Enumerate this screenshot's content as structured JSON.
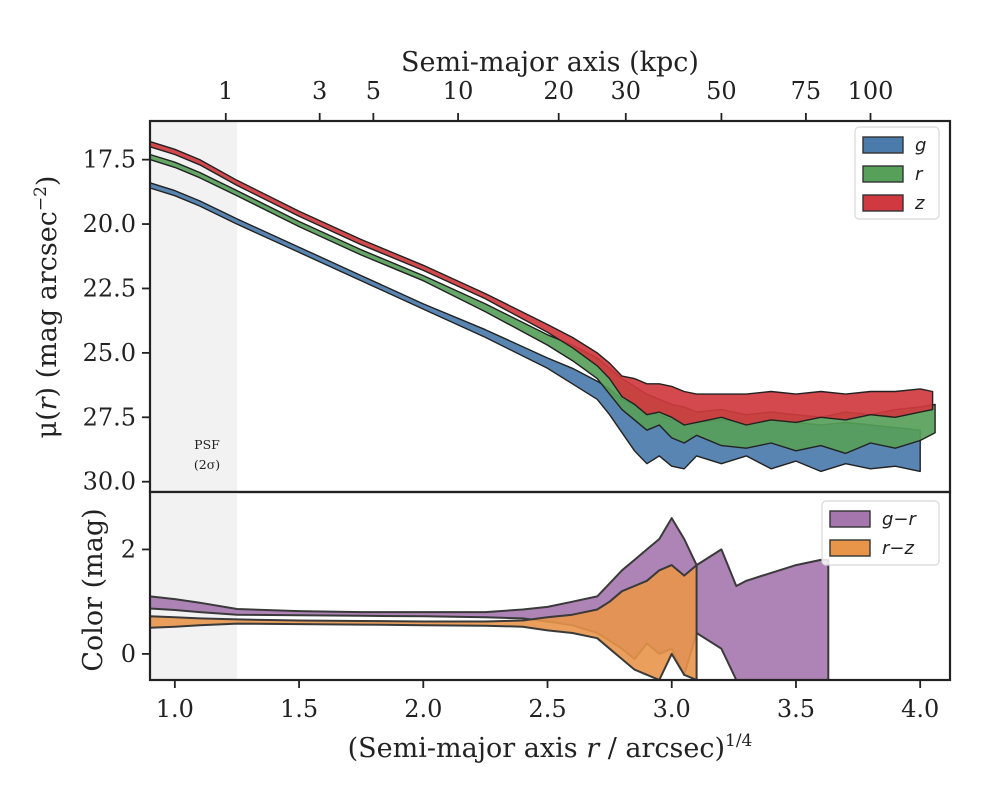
{
  "chart_data": [
    {
      "panel": "profile",
      "type": "area",
      "xlabel": "(Semi-major axis r / arcsec)^{1/4}",
      "xlabel_parts": {
        "main": "(Semi-major axis ",
        "var": "r",
        "rest": " / arcsec)",
        "sup": "1/4"
      },
      "top_xlabel": "Semi-major axis (kpc)",
      "top_ticks": [
        {
          "label": "1",
          "x": 1.205
        },
        {
          "label": "3",
          "x": 1.583
        },
        {
          "label": "5",
          "x": 1.799
        },
        {
          "label": "10",
          "x": 2.14
        },
        {
          "label": "20",
          "x": 2.545
        },
        {
          "label": "30",
          "x": 2.815
        },
        {
          "label": "50",
          "x": 3.2
        },
        {
          "label": "75",
          "x": 3.54
        },
        {
          "label": "100",
          "x": 3.8
        }
      ],
      "ylabel": "μ(r) (mag arcsec^−2)",
      "ylabel_parts": {
        "mu": "μ(",
        "var": "r",
        "rest": ") (mag arcsec",
        "sup": "−2",
        "close": ")"
      },
      "xlim": [
        0.9,
        4.12
      ],
      "ylim": [
        30.4,
        16.0
      ],
      "x_ticks": [
        "1.0",
        "1.5",
        "2.0",
        "2.5",
        "3.0",
        "3.5",
        "4.0"
      ],
      "y_ticks": [
        "17.5",
        "20.0",
        "22.5",
        "25.0",
        "27.5",
        "30.0"
      ],
      "psf_region": {
        "x_max": 1.25,
        "label_line1": "PSF",
        "label_line2": "(2σ)"
      },
      "legend": {
        "placement": "top-right",
        "entries": [
          "g",
          "r",
          "z"
        ]
      },
      "colors": {
        "g": "#4b7bab",
        "r": "#57a05a",
        "z": "#d0393f"
      },
      "series": [
        {
          "name": "g",
          "x": [
            0.9,
            1.0,
            1.1,
            1.25,
            1.5,
            1.75,
            2.0,
            2.25,
            2.5,
            2.6,
            2.7,
            2.75,
            2.8,
            2.85,
            2.9,
            2.95,
            3.0,
            3.05,
            3.1,
            3.2,
            3.3,
            3.4,
            3.5,
            3.6,
            3.7,
            3.8,
            3.9,
            4.0
          ],
          "y1": [
            18.4,
            18.7,
            19.1,
            19.8,
            20.9,
            22.0,
            23.1,
            24.1,
            25.2,
            25.6,
            26.1,
            26.4,
            26.8,
            27.0,
            27.3,
            27.4,
            27.6,
            27.6,
            27.7,
            27.6,
            27.7,
            27.6,
            27.7,
            27.8,
            27.7,
            27.8,
            27.9,
            28.0
          ],
          "y2": [
            18.6,
            18.9,
            19.3,
            20.0,
            21.1,
            22.2,
            23.3,
            24.4,
            25.6,
            26.2,
            26.8,
            27.4,
            28.1,
            28.8,
            29.3,
            29.0,
            29.4,
            29.5,
            29.0,
            29.3,
            29.0,
            29.5,
            29.2,
            29.6,
            29.3,
            29.5,
            29.4,
            29.6
          ]
        },
        {
          "name": "r",
          "x": [
            0.9,
            1.0,
            1.1,
            1.25,
            1.5,
            1.75,
            2.0,
            2.25,
            2.5,
            2.6,
            2.7,
            2.75,
            2.8,
            2.85,
            2.9,
            2.95,
            3.0,
            3.05,
            3.1,
            3.2,
            3.3,
            3.4,
            3.5,
            3.6,
            3.7,
            3.8,
            3.9,
            4.0,
            4.06
          ],
          "y1": [
            17.3,
            17.6,
            18.0,
            18.7,
            19.9,
            21.0,
            22.0,
            23.1,
            24.3,
            24.7,
            25.2,
            25.6,
            26.0,
            26.3,
            26.6,
            26.8,
            27.0,
            27.1,
            27.3,
            27.2,
            27.4,
            27.3,
            27.4,
            27.5,
            27.3,
            27.4,
            27.2,
            27.1,
            27.0
          ],
          "y2": [
            17.5,
            17.8,
            18.2,
            18.9,
            20.1,
            21.2,
            22.2,
            23.4,
            24.7,
            25.3,
            26.0,
            26.6,
            27.2,
            27.6,
            28.0,
            27.8,
            28.3,
            28.5,
            28.2,
            28.6,
            28.7,
            28.5,
            28.8,
            28.6,
            28.9,
            28.5,
            28.7,
            28.4,
            28.1
          ]
        },
        {
          "name": "z",
          "x": [
            0.9,
            1.0,
            1.1,
            1.25,
            1.5,
            1.75,
            2.0,
            2.25,
            2.5,
            2.6,
            2.7,
            2.75,
            2.8,
            2.85,
            2.9,
            2.95,
            3.0,
            3.05,
            3.1,
            3.2,
            3.3,
            3.4,
            3.5,
            3.6,
            3.7,
            3.8,
            3.9,
            4.0,
            4.05
          ],
          "y1": [
            16.8,
            17.1,
            17.5,
            18.3,
            19.5,
            20.6,
            21.6,
            22.7,
            23.9,
            24.4,
            25.0,
            25.4,
            25.9,
            26.0,
            26.2,
            26.2,
            26.3,
            26.5,
            26.6,
            26.6,
            26.6,
            26.5,
            26.6,
            26.5,
            26.6,
            26.5,
            26.5,
            26.4,
            26.5
          ],
          "y2": [
            17.0,
            17.3,
            17.7,
            18.5,
            19.7,
            20.8,
            21.8,
            22.9,
            24.2,
            24.8,
            25.5,
            26.0,
            26.7,
            27.0,
            27.4,
            27.3,
            27.5,
            27.8,
            27.7,
            27.5,
            27.8,
            27.6,
            27.7,
            27.5,
            27.6,
            27.4,
            27.5,
            27.3,
            27.2
          ]
        }
      ]
    },
    {
      "panel": "color",
      "type": "area",
      "ylabel": "Color (mag)",
      "xlim": [
        0.9,
        4.12
      ],
      "ylim": [
        -0.5,
        3.1
      ],
      "y_ticks": [
        "0",
        "2"
      ],
      "y_tick_values": [
        0,
        2
      ],
      "legend": {
        "placement": "top-right",
        "entries": [
          "g−r",
          "r−z"
        ]
      },
      "colors": {
        "g-r": "#a575ad",
        "r-z": "#e8954a"
      },
      "series": [
        {
          "name": "g−r",
          "x": [
            0.9,
            1.0,
            1.1,
            1.25,
            1.5,
            1.75,
            2.0,
            2.25,
            2.4,
            2.5,
            2.6,
            2.7,
            2.75,
            2.8,
            2.85,
            2.9,
            2.95,
            3.0,
            3.05,
            3.1,
            3.2,
            3.26,
            3.3,
            3.4,
            3.5,
            3.6,
            3.63
          ],
          "y1": [
            0.87,
            0.84,
            0.8,
            0.75,
            0.74,
            0.73,
            0.72,
            0.7,
            0.68,
            0.62,
            0.55,
            0.4,
            0.25,
            0.1,
            -0.1,
            0.2,
            0.0,
            0.1,
            -0.4,
            0.4,
            0.1,
            -0.5,
            -0.5,
            -0.5,
            -0.5,
            -0.5,
            -0.5
          ],
          "y2": [
            1.1,
            1.05,
            0.98,
            0.86,
            0.82,
            0.8,
            0.8,
            0.8,
            0.85,
            0.9,
            1.0,
            1.1,
            1.35,
            1.6,
            1.8,
            2.0,
            2.2,
            2.6,
            2.2,
            1.7,
            2.0,
            1.3,
            1.4,
            1.55,
            1.7,
            1.8,
            1.8
          ]
        },
        {
          "name": "r−z",
          "x": [
            0.9,
            1.0,
            1.1,
            1.25,
            1.5,
            1.75,
            2.0,
            2.25,
            2.4,
            2.5,
            2.6,
            2.7,
            2.75,
            2.8,
            2.85,
            2.9,
            2.95,
            3.0,
            3.05,
            3.1
          ],
          "y1": [
            0.5,
            0.52,
            0.55,
            0.58,
            0.57,
            0.56,
            0.55,
            0.54,
            0.52,
            0.45,
            0.4,
            0.3,
            0.1,
            -0.1,
            -0.3,
            -0.4,
            -0.5,
            0.0,
            -0.4,
            -0.5
          ],
          "y2": [
            0.72,
            0.7,
            0.68,
            0.66,
            0.64,
            0.63,
            0.62,
            0.62,
            0.64,
            0.7,
            0.75,
            0.85,
            1.0,
            1.2,
            1.3,
            1.4,
            1.6,
            1.7,
            1.5,
            1.7
          ]
        }
      ]
    }
  ]
}
